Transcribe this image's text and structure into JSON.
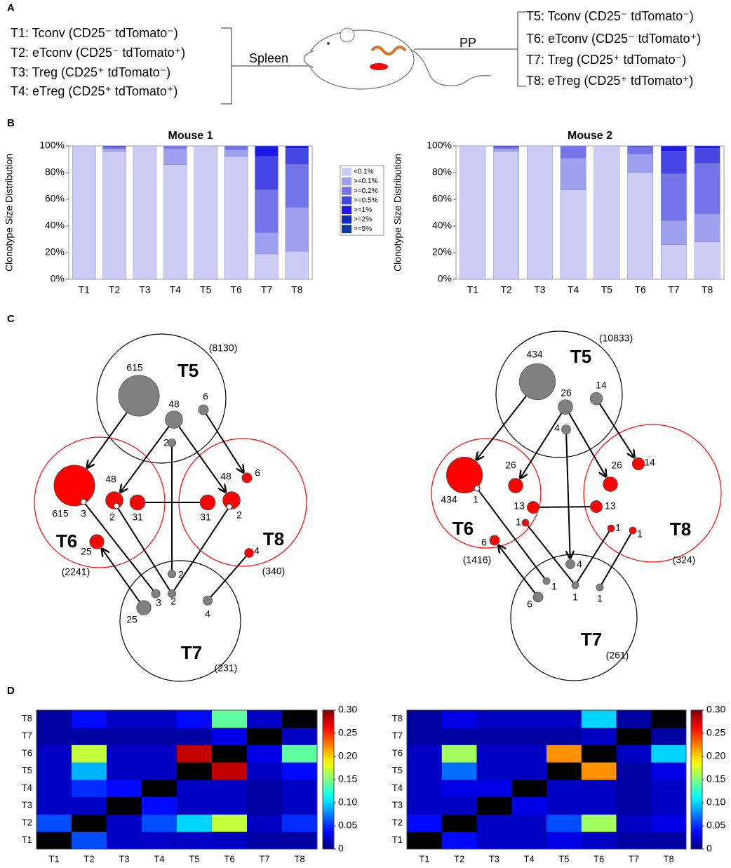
{
  "panels": [
    "A",
    "B",
    "C",
    "D"
  ],
  "cell_groups": {
    "spleen": {
      "label": "Spleen",
      "items": [
        {
          "text": "T1: Tconv (CD25⁻ tdTomato⁻)",
          "color": "#000000"
        },
        {
          "text": "T2: eTconv (CD25⁻ tdTomato⁺)",
          "color": "#ff0000"
        },
        {
          "text": "T3: Treg (CD25⁺ tdTomato⁻)",
          "color": "#000000"
        },
        {
          "text": "T4: eTreg (CD25⁺ tdTomato⁺)",
          "color": "#ff0000"
        }
      ]
    },
    "pp": {
      "label": "PP",
      "items": [
        {
          "text": "T5: Tconv (CD25⁻ tdTomato⁻)",
          "color": "#000000"
        },
        {
          "text": "T6: eTconv (CD25⁻ tdTomato⁺)",
          "color": "#ff0000"
        },
        {
          "text": "T7: Treg (CD25⁺ tdTomato⁻)",
          "color": "#000000"
        },
        {
          "text": "T8: eTreg (CD25⁺ tdTomato⁺)",
          "color": "#ff0000"
        }
      ]
    }
  },
  "chart_data": [
    {
      "type": "stacked_bar",
      "title": "Mouse 1",
      "ylabel": "Clonotype Size Distribution",
      "categories": [
        "T1",
        "T2",
        "T3",
        "T4",
        "T5",
        "T6",
        "T7",
        "T8"
      ],
      "ylim": [
        0,
        100
      ],
      "yticks": [
        {
          "value": 0,
          "label": "0%"
        },
        {
          "value": 20,
          "label": "20%"
        },
        {
          "value": 40,
          "label": "40%"
        },
        {
          "value": 60,
          "label": "60%"
        },
        {
          "value": 80,
          "label": "80%"
        },
        {
          "value": 100,
          "label": "100%"
        }
      ],
      "legend": true,
      "series": [
        {
          "name": "<0.1%",
          "color": "#ccccf7",
          "values": [
            100,
            96,
            100,
            86,
            100,
            92,
            19,
            21
          ]
        },
        {
          "name": ">=0.1%",
          "color": "#a0a0f0",
          "values": [
            0,
            2,
            0,
            12,
            0,
            5,
            16,
            33
          ]
        },
        {
          "name": ">=0.2%",
          "color": "#7373ea",
          "values": [
            0,
            1,
            0,
            2,
            0,
            3,
            32,
            32
          ]
        },
        {
          "name": ">=0.5%",
          "color": "#4646e6",
          "values": [
            0,
            1,
            0,
            0,
            0,
            0,
            25,
            12
          ]
        },
        {
          "name": ">=1%",
          "color": "#1a1ae8",
          "values": [
            0,
            0,
            0,
            0,
            0,
            0,
            8,
            2
          ]
        },
        {
          "name": ">=2%",
          "color": "#0a2bbd",
          "values": [
            0,
            0,
            0,
            0,
            0,
            0,
            0,
            0
          ]
        },
        {
          "name": ">=5%",
          "color": "#0a3aa0",
          "values": [
            0,
            0,
            0,
            0,
            0,
            0,
            0,
            0
          ]
        }
      ]
    },
    {
      "type": "stacked_bar",
      "title": "Mouse 2",
      "ylabel": "Clonotype Size Distribution",
      "categories": [
        "T1",
        "T2",
        "T3",
        "T4",
        "T5",
        "T6",
        "T7",
        "T8"
      ],
      "ylim": [
        0,
        100
      ],
      "yticks": [
        {
          "value": 0,
          "label": "0%"
        },
        {
          "value": 20,
          "label": "20%"
        },
        {
          "value": 40,
          "label": "40%"
        },
        {
          "value": 60,
          "label": "60%"
        },
        {
          "value": 80,
          "label": "80%"
        },
        {
          "value": 100,
          "label": "100%"
        }
      ],
      "legend": false,
      "series": [
        {
          "color": "#ccccf7",
          "values": [
            100,
            96,
            100,
            67,
            100,
            80,
            26,
            28
          ]
        },
        {
          "color": "#a0a0f0",
          "values": [
            0,
            2,
            0,
            24,
            0,
            14,
            18,
            21
          ]
        },
        {
          "color": "#7373ea",
          "values": [
            0,
            1,
            0,
            9,
            0,
            5,
            35,
            38
          ]
        },
        {
          "color": "#4646e6",
          "values": [
            0,
            1,
            0,
            0,
            0,
            1,
            17,
            11
          ]
        },
        {
          "color": "#1a1ae8",
          "values": [
            0,
            0,
            0,
            0,
            0,
            0,
            4,
            2
          ]
        },
        {
          "color": "#0a2bbd",
          "values": [
            0,
            0,
            0,
            0,
            0,
            0,
            0,
            0
          ]
        },
        {
          "color": "#0a3aa0",
          "values": [
            0,
            0,
            0,
            0,
            0,
            0,
            0,
            0
          ]
        }
      ]
    },
    {
      "type": "heatmap",
      "colormap": "jet",
      "missing_color": "#000000",
      "categories": [
        "T1",
        "T2",
        "T3",
        "T4",
        "T5",
        "T6",
        "T7",
        "T8"
      ],
      "zlim": [
        0,
        0.3
      ],
      "zticks": [
        0,
        0.05,
        {
          "value": 0.1,
          "label": "0.10"
        },
        0.15,
        {
          "value": 0.2,
          "label": "0.20"
        },
        0.25,
        {
          "value": 0.3,
          "label": "0.30"
        }
      ],
      "values": [
        [
          null,
          0.06,
          0.02,
          0.02,
          0.02,
          0.02,
          0.01,
          0.01
        ],
        [
          0.06,
          null,
          0.02,
          0.06,
          0.1,
          0.17,
          0.02,
          0.05
        ],
        [
          0.02,
          0.02,
          null,
          0.04,
          0.02,
          0.02,
          0.01,
          0.02
        ],
        [
          0.02,
          0.05,
          0.04,
          null,
          0.02,
          0.02,
          0.01,
          0.02
        ],
        [
          0.02,
          0.09,
          0.02,
          0.02,
          null,
          0.28,
          0.02,
          0.04
        ],
        [
          0.02,
          0.17,
          0.02,
          0.02,
          0.28,
          null,
          0.03,
          0.14
        ],
        [
          0.01,
          0.01,
          0.01,
          0.01,
          0.01,
          0.03,
          null,
          0.02
        ],
        [
          0.01,
          0.04,
          0.02,
          0.02,
          0.04,
          0.14,
          0.02,
          null
        ]
      ]
    },
    {
      "type": "heatmap",
      "colormap": "jet",
      "missing_color": "#000000",
      "categories": [
        "T1",
        "T2",
        "T3",
        "T4",
        "T5",
        "T6",
        "T7",
        "T8"
      ],
      "zlim": [
        0,
        0.3
      ],
      "zticks": [
        0,
        0.05,
        {
          "value": 0.1,
          "label": "0.10"
        },
        0.15,
        {
          "value": 0.2,
          "label": "0.20"
        },
        0.25,
        {
          "value": 0.3,
          "label": "0.30"
        }
      ],
      "values": [
        [
          null,
          0.04,
          0.02,
          0.02,
          0.03,
          0.02,
          0.01,
          0.01
        ],
        [
          0.04,
          null,
          0.02,
          0.02,
          0.06,
          0.16,
          0.02,
          0.03
        ],
        [
          0.02,
          0.02,
          null,
          0.03,
          0.02,
          0.02,
          0.01,
          0.02
        ],
        [
          0.02,
          0.03,
          0.03,
          null,
          0.02,
          0.02,
          0.01,
          0.02
        ],
        [
          0.02,
          0.07,
          0.02,
          0.02,
          null,
          0.22,
          0.01,
          0.03
        ],
        [
          0.02,
          0.16,
          0.02,
          0.02,
          0.22,
          null,
          0.02,
          0.1
        ],
        [
          0.01,
          0.01,
          0.01,
          0.01,
          0.01,
          0.02,
          null,
          0.01
        ],
        [
          0.01,
          0.03,
          0.02,
          0.02,
          0.02,
          0.1,
          0.01,
          null
        ]
      ]
    }
  ],
  "networks": [
    {
      "groups": [
        {
          "name": "T5",
          "count": "(8130)",
          "color": "#000000"
        },
        {
          "name": "T6",
          "count": "(2241)",
          "color": "#ff0000"
        },
        {
          "name": "T8",
          "count": "(340)",
          "color": "#ff0000"
        },
        {
          "name": "T7",
          "count": "(231)",
          "color": "#000000"
        }
      ],
      "nodes": [
        {
          "value": 615,
          "color": "#808080"
        },
        {
          "value": 48,
          "color": "#808080"
        },
        {
          "value": 6,
          "color": "#808080"
        },
        {
          "value": 2,
          "color": "#808080"
        },
        {
          "value": 615,
          "color": "#ff0000"
        },
        {
          "value": 3,
          "color": "#ff0000",
          "hollow": true
        },
        {
          "value": 48,
          "color": "#ff0000"
        },
        {
          "value": 2,
          "color": "#ff0000",
          "hollow": true
        },
        {
          "value": 31,
          "color": "#ff0000"
        },
        {
          "value": 31,
          "color": "#ff0000"
        },
        {
          "value": 48,
          "color": "#ff0000"
        },
        {
          "value": 2,
          "color": "#ff0000",
          "hollow": true
        },
        {
          "value": 6,
          "color": "#ff0000"
        },
        {
          "value": 25,
          "color": "#ff0000"
        },
        {
          "value": 4,
          "color": "#ff0000"
        },
        {
          "value": 2,
          "color": "#808080"
        },
        {
          "value": 2,
          "color": "#808080"
        },
        {
          "value": 3,
          "color": "#808080"
        },
        {
          "value": 25,
          "color": "#808080"
        },
        {
          "value": 4,
          "color": "#808080"
        }
      ]
    },
    {
      "groups": [
        {
          "name": "T5",
          "count": "(10833)",
          "color": "#000000"
        },
        {
          "name": "T6",
          "count": "(1416)",
          "color": "#ff0000"
        },
        {
          "name": "T8",
          "count": "(324)",
          "color": "#ff0000"
        },
        {
          "name": "T7",
          "count": "(261)",
          "color": "#000000"
        }
      ],
      "nodes": [
        {
          "value": 434,
          "color": "#808080"
        },
        {
          "value": 26,
          "color": "#808080"
        },
        {
          "value": 14,
          "color": "#808080"
        },
        {
          "value": 4,
          "color": "#808080"
        },
        {
          "value": 434,
          "color": "#ff0000"
        },
        {
          "value": 1,
          "color": "#ff0000",
          "hollow": true
        },
        {
          "value": 26,
          "color": "#ff0000"
        },
        {
          "value": 26,
          "color": "#ff0000"
        },
        {
          "value": 14,
          "color": "#ff0000"
        },
        {
          "value": 13,
          "color": "#ff0000"
        },
        {
          "value": 13,
          "color": "#ff0000"
        },
        {
          "value": 1,
          "color": "#ff0000"
        },
        {
          "value": 1,
          "color": "#ff0000"
        },
        {
          "value": 1,
          "color": "#ff0000"
        },
        {
          "value": 6,
          "color": "#ff0000"
        },
        {
          "value": 4,
          "color": "#808080"
        },
        {
          "value": 1,
          "color": "#808080"
        },
        {
          "value": 1,
          "color": "#808080"
        },
        {
          "value": 1,
          "color": "#808080"
        },
        {
          "value": 6,
          "color": "#808080"
        }
      ]
    }
  ]
}
